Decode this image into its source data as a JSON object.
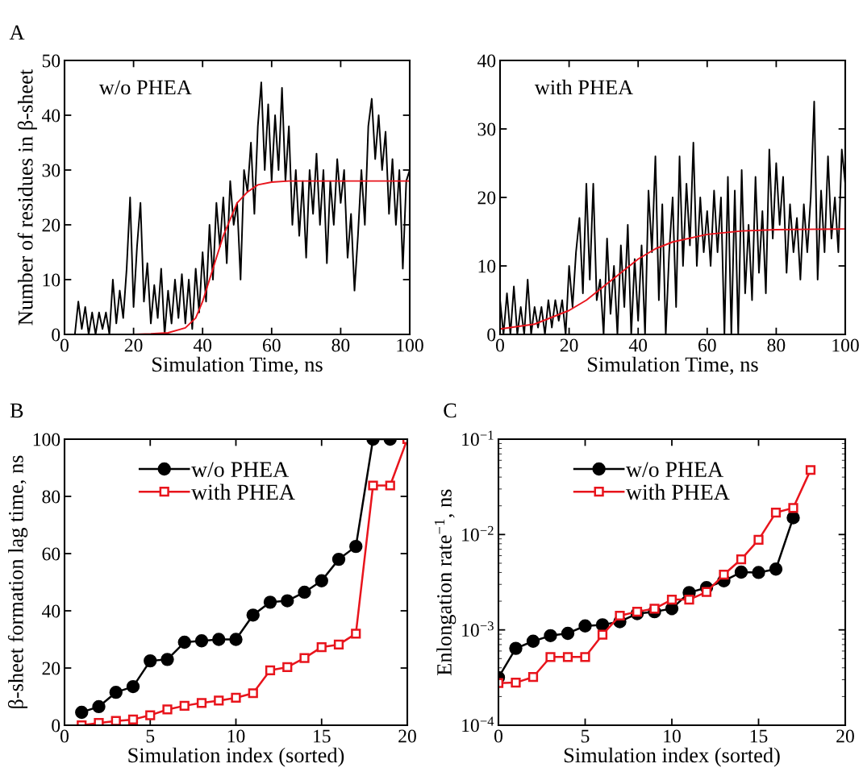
{
  "chart_data": [
    {
      "type": "line",
      "title": "A",
      "xlabel": "Simulation Time, ns",
      "ylabel": "Number of residues in β-sheet",
      "annotations": [
        "w/o PHEA"
      ],
      "xlim": [
        0,
        100
      ],
      "ylim": [
        0,
        50
      ],
      "xticks": [
        0,
        20,
        40,
        60,
        80,
        100
      ],
      "yticks": [
        0,
        10,
        20,
        30,
        40,
        50
      ],
      "grid": false,
      "legend": false,
      "series": [
        {
          "color": "#000000",
          "x": [
            3,
            4,
            5,
            6,
            7,
            8,
            9,
            10,
            11,
            12,
            13,
            14,
            15,
            16,
            17,
            18,
            19,
            20,
            21,
            22,
            23,
            24,
            25,
            26,
            27,
            28,
            29,
            30,
            31,
            32,
            33,
            34,
            35,
            36,
            37,
            38,
            39,
            40,
            41,
            42,
            43,
            44,
            45,
            46,
            47,
            48,
            49,
            50,
            51,
            52,
            53,
            54,
            55,
            56,
            57,
            58,
            59,
            60,
            61,
            62,
            63,
            64,
            65,
            66,
            67,
            68,
            69,
            70,
            71,
            72,
            73,
            74,
            75,
            76,
            77,
            78,
            79,
            80,
            81,
            82,
            83,
            84,
            85,
            86,
            87,
            88,
            89,
            90,
            91,
            92,
            93,
            94,
            95,
            96,
            97,
            98,
            99,
            100
          ],
          "values": [
            0,
            6,
            1,
            5,
            0,
            4,
            0,
            4,
            1,
            4,
            0,
            10,
            2,
            8,
            3,
            12,
            25,
            5,
            16,
            24,
            6,
            13,
            2,
            9,
            3,
            12,
            0,
            8,
            2,
            10,
            3,
            11,
            2,
            10,
            1,
            12,
            4,
            15,
            6,
            20,
            10,
            24,
            16,
            25,
            13,
            28,
            20,
            24,
            10,
            30,
            26,
            35,
            22,
            38,
            46,
            30,
            42,
            28,
            40,
            30,
            45,
            28,
            38,
            20,
            30,
            18,
            28,
            14,
            30,
            22,
            33,
            20,
            30,
            13,
            28,
            20,
            32,
            24,
            30,
            14,
            22,
            8,
            18,
            30,
            20,
            38,
            43,
            32,
            40,
            30,
            37,
            22,
            32,
            20,
            30,
            12,
            28,
            30
          ]
        },
        {
          "color": "#e8141c",
          "x": [
            20,
            25,
            30,
            35,
            38,
            40,
            42,
            44,
            46,
            48,
            50,
            53,
            56,
            60,
            65,
            80,
            100
          ],
          "values": [
            0,
            0.1,
            0.3,
            1.2,
            3,
            6,
            10,
            14,
            18,
            21,
            24,
            26,
            27.3,
            27.8,
            28,
            28,
            28
          ]
        }
      ]
    },
    {
      "type": "line",
      "xlabel": "Simulation Time, ns",
      "annotations": [
        "with PHEA"
      ],
      "xlim": [
        0,
        100
      ],
      "ylim": [
        0,
        40
      ],
      "xticks": [
        0,
        20,
        40,
        60,
        80,
        100
      ],
      "yticks": [
        0,
        10,
        20,
        30,
        40
      ],
      "grid": false,
      "legend": false,
      "series": [
        {
          "color": "#000000",
          "x": [
            0,
            1,
            2,
            3,
            4,
            5,
            6,
            7,
            8,
            9,
            10,
            11,
            12,
            13,
            14,
            15,
            16,
            17,
            18,
            19,
            20,
            21,
            22,
            23,
            24,
            25,
            26,
            27,
            28,
            29,
            30,
            31,
            32,
            33,
            34,
            35,
            36,
            37,
            38,
            39,
            40,
            41,
            42,
            43,
            44,
            45,
            46,
            47,
            48,
            49,
            50,
            51,
            52,
            53,
            54,
            55,
            56,
            57,
            58,
            59,
            60,
            61,
            62,
            63,
            64,
            65,
            66,
            67,
            68,
            69,
            70,
            71,
            72,
            73,
            74,
            75,
            76,
            77,
            78,
            79,
            80,
            81,
            82,
            83,
            84,
            85,
            86,
            87,
            88,
            89,
            90,
            91,
            92,
            93,
            94,
            95,
            96,
            97,
            98,
            99,
            100
          ],
          "values": [
            5,
            0,
            6,
            0,
            7,
            0,
            4,
            0,
            8,
            0,
            4,
            1,
            4,
            0,
            5,
            1,
            5,
            2,
            5,
            0,
            10,
            4,
            12,
            17,
            6,
            22,
            8,
            22,
            5,
            8,
            0,
            14,
            3,
            10,
            0,
            13,
            4,
            16,
            0,
            11,
            2,
            13,
            0,
            21,
            12,
            26,
            5,
            19,
            0,
            12,
            20,
            4,
            26,
            10,
            22,
            13,
            28,
            10,
            20,
            12,
            18,
            10,
            21,
            12,
            20,
            0,
            23,
            0,
            21,
            0,
            24,
            6,
            16,
            5,
            23,
            9,
            18,
            6,
            27,
            14,
            25,
            16,
            23,
            9,
            19,
            12,
            17,
            8,
            19,
            12,
            20,
            34,
            8,
            21,
            12,
            26,
            14,
            20,
            12,
            27,
            22
          ]
        },
        {
          "color": "#e8141c",
          "x": [
            0,
            10,
            20,
            25,
            30,
            35,
            40,
            45,
            50,
            60,
            70,
            80,
            100
          ],
          "values": [
            0.8,
            1.5,
            3.5,
            5,
            7,
            9,
            11,
            12.5,
            13.5,
            14.6,
            15.1,
            15.3,
            15.4
          ]
        }
      ]
    },
    {
      "type": "line",
      "title": "B",
      "xlabel": "Simulation index (sorted)",
      "ylabel": "β-sheet formation lag time, ns",
      "xlim": [
        0,
        20
      ],
      "ylim": [
        0,
        100
      ],
      "xticks": [
        0,
        5,
        10,
        15,
        20
      ],
      "yticks": [
        0,
        20,
        40,
        60,
        80,
        100
      ],
      "grid": false,
      "legend": "top left",
      "series": [
        {
          "name": "w/o PHEA",
          "color": "#000000",
          "marker": "circle",
          "x": [
            1,
            2,
            3,
            4,
            5,
            6,
            7,
            8,
            9,
            10,
            11,
            12,
            13,
            14,
            15,
            16,
            17,
            18,
            19
          ],
          "values": [
            4.5,
            6.5,
            11.5,
            13.5,
            22.5,
            23,
            29,
            29.5,
            30,
            30,
            38.5,
            43,
            43.5,
            46.5,
            50.5,
            58,
            62.5,
            100,
            100
          ]
        },
        {
          "name": "with PHEA",
          "color": "#e8141c",
          "marker": "square",
          "x": [
            1,
            2,
            3,
            4,
            5,
            6,
            7,
            8,
            9,
            10,
            11,
            12,
            13,
            14,
            15,
            16,
            17,
            18,
            19,
            20
          ],
          "values": [
            0,
            0.8,
            1.5,
            2,
            3.5,
            5.5,
            6.8,
            7.8,
            8.6,
            9.6,
            11.2,
            19.2,
            20.3,
            23.5,
            27.3,
            28.2,
            32,
            83.8,
            83.8,
            100
          ]
        }
      ]
    },
    {
      "type": "line",
      "title": "C",
      "xlabel": "Simulation index (sorted)",
      "ylabel": "Enlongation rate$^{−1}$, ns",
      "log": "y",
      "xlim": [
        0,
        20
      ],
      "ylim": [
        0.0001,
        0.1
      ],
      "xticks": [
        0,
        5,
        10,
        15,
        20
      ],
      "yticks": [
        {
          "value": 0.0001,
          "label": "10$^{−4}$"
        },
        {
          "value": 0.001,
          "label": "10$^{−3}$"
        },
        {
          "value": 0.01,
          "label": "10$^{−2}$"
        },
        {
          "value": 0.1,
          "label": "10$^{−1}$"
        }
      ],
      "grid": false,
      "legend": "top left",
      "series": [
        {
          "name": "w/o PHEA",
          "color": "#000000",
          "marker": "circle",
          "x": [
            0,
            1,
            2,
            3,
            4,
            5,
            6,
            7,
            8,
            9,
            10,
            11,
            12,
            13,
            14,
            15,
            16,
            17
          ],
          "values": [
            0.000316,
            0.00064,
            0.00076,
            0.00087,
            0.00092,
            0.0011,
            0.00113,
            0.00122,
            0.00148,
            0.00155,
            0.00167,
            0.00246,
            0.00277,
            0.00327,
            0.00403,
            0.004,
            0.00434,
            0.015
          ]
        },
        {
          "name": "with PHEA",
          "color": "#e8141c",
          "marker": "square",
          "x": [
            0,
            1,
            2,
            3,
            4,
            5,
            6,
            7,
            8,
            9,
            10,
            11,
            12,
            13,
            14,
            15,
            16,
            17,
            18
          ],
          "values": [
            0.000277,
            0.00028,
            0.00032,
            0.00052,
            0.00052,
            0.00052,
            0.00089,
            0.00141,
            0.00155,
            0.00167,
            0.00208,
            0.00208,
            0.0025,
            0.0038,
            0.0055,
            0.0088,
            0.017,
            0.019,
            0.0475
          ]
        }
      ]
    }
  ]
}
